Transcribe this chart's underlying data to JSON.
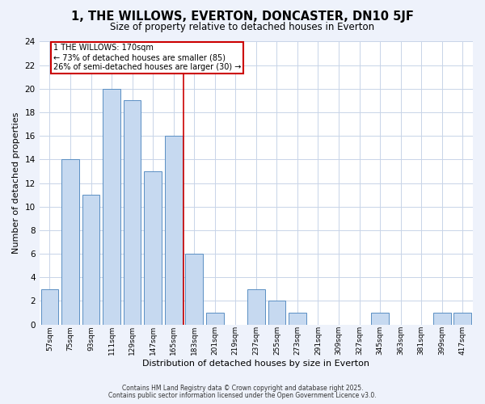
{
  "title": "1, THE WILLOWS, EVERTON, DONCASTER, DN10 5JF",
  "subtitle": "Size of property relative to detached houses in Everton",
  "xlabel": "Distribution of detached houses by size in Everton",
  "ylabel": "Number of detached properties",
  "bin_labels": [
    "57sqm",
    "75sqm",
    "93sqm",
    "111sqm",
    "129sqm",
    "147sqm",
    "165sqm",
    "183sqm",
    "201sqm",
    "219sqm",
    "237sqm",
    "255sqm",
    "273sqm",
    "291sqm",
    "309sqm",
    "327sqm",
    "345sqm",
    "363sqm",
    "381sqm",
    "399sqm",
    "417sqm"
  ],
  "bar_values": [
    3,
    14,
    11,
    20,
    19,
    13,
    16,
    6,
    1,
    0,
    3,
    2,
    1,
    0,
    0,
    0,
    1,
    0,
    0,
    1,
    1
  ],
  "bar_color": "#c6d9f0",
  "bar_edge_color": "#5a8fc3",
  "ylim": [
    0,
    24
  ],
  "yticks": [
    0,
    2,
    4,
    6,
    8,
    10,
    12,
    14,
    16,
    18,
    20,
    22,
    24
  ],
  "annotation_title": "1 THE WILLOWS: 170sqm",
  "annotation_line1": "← 73% of detached houses are smaller (85)",
  "annotation_line2": "26% of semi-detached houses are larger (30) →",
  "marker_line_color": "#cc0000",
  "annotation_box_edge": "#cc0000",
  "footer1": "Contains HM Land Registry data © Crown copyright and database right 2025.",
  "footer2": "Contains public sector information licensed under the Open Government Licence v3.0.",
  "background_color": "#eef2fb",
  "plot_bg_color": "#ffffff",
  "grid_color": "#c8d4e8"
}
